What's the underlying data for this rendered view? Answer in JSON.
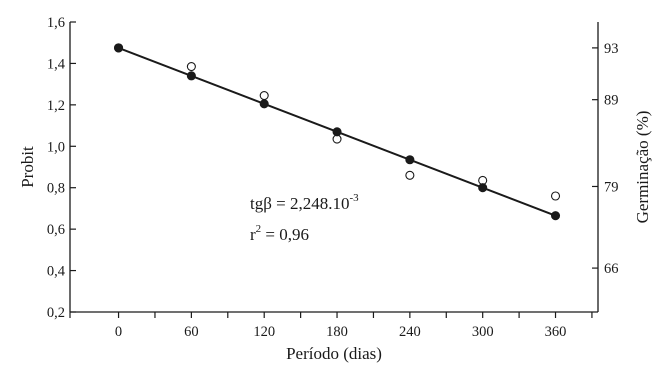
{
  "chart_data": {
    "type": "scatter",
    "x": [
      0,
      60,
      120,
      180,
      240,
      300,
      360
    ],
    "xticks": [
      "0",
      "60",
      "120",
      "180",
      "240",
      "300",
      "360"
    ],
    "xlabel": "Período (dias)",
    "xlim": [
      -40,
      395
    ],
    "ylabel": "Probit",
    "ylim": [
      0.2,
      1.6
    ],
    "yticks": [
      "0,2",
      "0,4",
      "0,6",
      "0,8",
      "1,0",
      "1,2",
      "1,4",
      "1,6"
    ],
    "y2label": "Germinação (%)",
    "y2ticks": [
      {
        "label": "93",
        "probit": 1.475
      },
      {
        "label": "89",
        "probit": 1.225
      },
      {
        "label": "79",
        "probit": 0.806
      },
      {
        "label": "66",
        "probit": 0.412
      }
    ],
    "series": [
      {
        "marker": "open-circle",
        "values": [
          1.475,
          1.385,
          1.245,
          1.035,
          0.86,
          0.835,
          0.76
        ]
      },
      {
        "marker": "filled-circle",
        "values": [
          1.475,
          1.34,
          1.205,
          1.07,
          0.935,
          0.8,
          0.665
        ]
      }
    ],
    "fit_line": {
      "x": [
        0,
        360
      ],
      "y": [
        1.475,
        0.665
      ]
    },
    "annotations": {
      "slope_label": "tgβ = 2,248.10",
      "slope_exponent": "-3",
      "r2_label": "r",
      "r2_exponent": "2",
      "r2_value": " = 0,96"
    },
    "grid": false
  }
}
